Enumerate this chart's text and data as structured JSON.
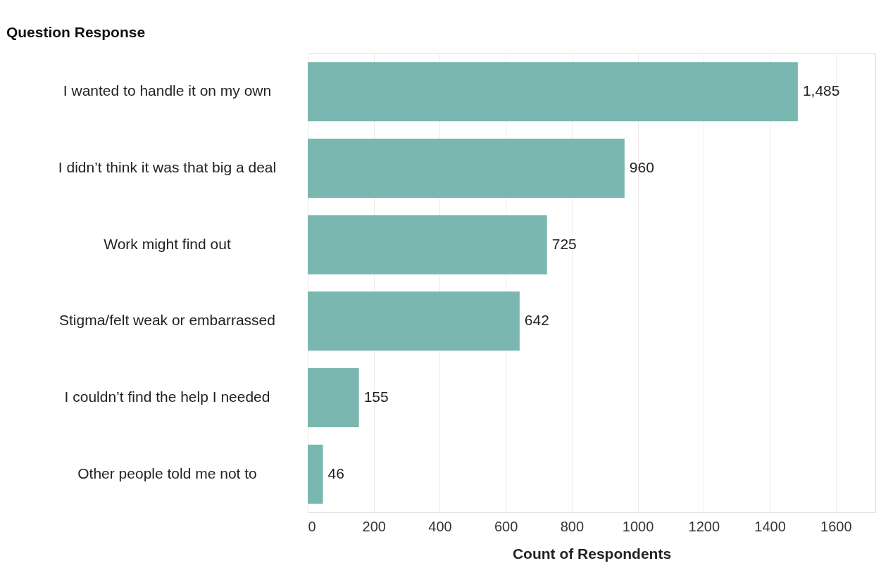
{
  "chart_data": {
    "type": "bar",
    "orientation": "horizontal",
    "ylabel": "Question Response",
    "xlabel": "Count of Respondents",
    "categories": [
      "I wanted to handle it on my own",
      "I didn’t think it was that big a deal",
      "Work might find out",
      "Stigma/felt weak or embarrassed",
      "I couldn’t find the help I needed",
      "Other people told me not to"
    ],
    "values": [
      1485,
      960,
      725,
      642,
      155,
      46
    ],
    "value_labels": [
      "1,485",
      "960",
      "725",
      "642",
      "155",
      "46"
    ],
    "color": "#79b7b0",
    "xlim": [
      0,
      1720
    ],
    "xticks": [
      0,
      200,
      400,
      600,
      800,
      1000,
      1200,
      1400,
      1600
    ],
    "grid": "x"
  }
}
